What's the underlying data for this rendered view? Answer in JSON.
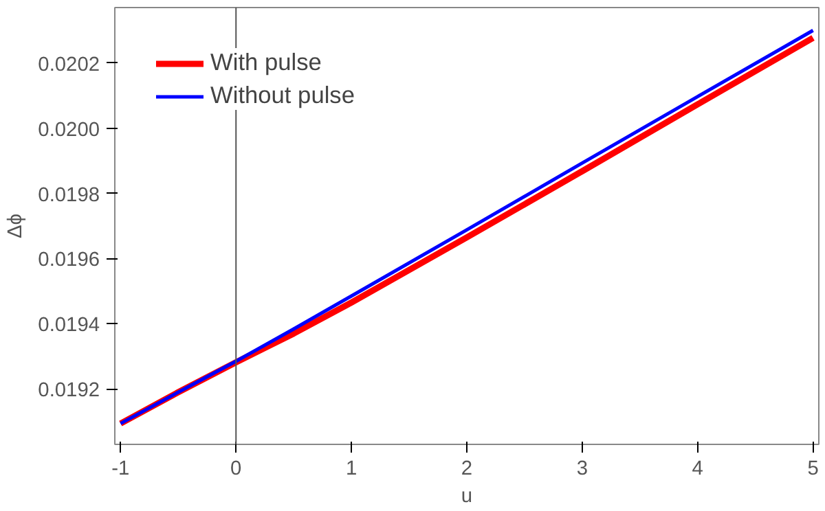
{
  "chart_data": {
    "type": "line",
    "xlabel": "u",
    "ylabel": "Δϕ",
    "xlim": [
      -1.05,
      5.05
    ],
    "ylim": [
      0.01903,
      0.02037
    ],
    "xticks": [
      -1,
      0,
      1,
      2,
      3,
      4,
      5
    ],
    "yticks": [
      {
        "value": 0.0192,
        "label": "0.0192"
      },
      {
        "value": 0.0194,
        "label": "0.0194"
      },
      {
        "value": 0.0196,
        "label": "0.0196"
      },
      {
        "value": 0.0198,
        "label": "0.0198"
      },
      {
        "value": 0.02,
        "label": "0.0200"
      },
      {
        "value": 0.0202,
        "label": "0.0202"
      }
    ],
    "x": [
      -1,
      -0.5,
      0,
      0.5,
      1,
      2,
      3,
      4,
      5
    ],
    "series": [
      {
        "name": "With pulse",
        "color": "#ff0000",
        "values": [
          0.019094,
          0.01919,
          0.019282,
          0.01937,
          0.019465,
          0.019665,
          0.019868,
          0.020073,
          0.020277
        ]
      },
      {
        "name": "Without pulse",
        "color": "#0000ff",
        "values": [
          0.019094,
          0.01919,
          0.019285,
          0.019384,
          0.019485,
          0.019688,
          0.019893,
          0.020097,
          0.0203
        ]
      }
    ],
    "ref_lines": [
      {
        "axis": "x",
        "value": 0,
        "color": "#555555"
      }
    ],
    "legend": "top left",
    "grid": false,
    "line_style": "solid"
  }
}
